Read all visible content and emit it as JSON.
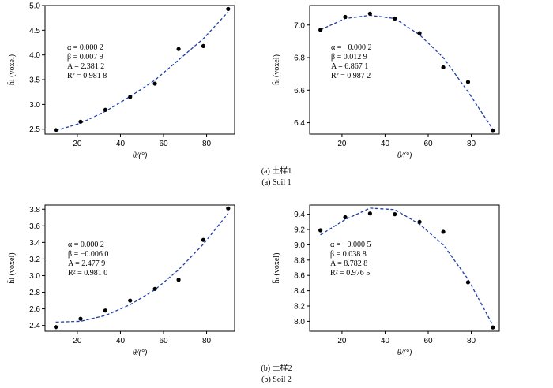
{
  "captions": {
    "a_cn": "(a) 土样1",
    "a_en": "(a) Soil 1",
    "b_cn": "(b) 土样2",
    "b_en": "(b) Soil 2"
  },
  "chart_data": [
    {
      "type": "scatter",
      "xlabel": "θ/(°)",
      "ylabel": "h̄l (voxel)",
      "xlim": [
        5,
        93
      ],
      "ylim": [
        2.4,
        5.0
      ],
      "xticks": [
        "20",
        "40",
        "60",
        "80"
      ],
      "xtick_values": [
        20,
        40,
        60,
        80
      ],
      "yticks": [
        "2.5",
        "3.0",
        "3.5",
        "4.0",
        "4.5",
        "5.0"
      ],
      "ytick_values": [
        2.5,
        3.0,
        3.5,
        4.0,
        4.5,
        5.0
      ],
      "points": {
        "x": [
          10,
          21.5,
          33,
          44.5,
          56,
          67,
          78.5,
          90
        ],
        "y": [
          2.48,
          2.65,
          2.89,
          3.15,
          3.42,
          4.12,
          4.18,
          4.93
        ]
      },
      "fit": {
        "x": [
          10,
          21.5,
          33,
          44.5,
          56,
          67,
          78.5,
          90
        ],
        "y": [
          2.47,
          2.62,
          2.86,
          3.16,
          3.49,
          3.9,
          4.33,
          4.87
        ]
      },
      "annotations": [
        "α = 0.000 2",
        "β = 0.007 9",
        "A = 2.381 2",
        "R² = 0.981 8"
      ]
    },
    {
      "type": "scatter",
      "xlabel": "θ/(°)",
      "ylabel": "h̄ₜ (voxel)",
      "xlim": [
        5,
        93
      ],
      "ylim": [
        6.33,
        7.12
      ],
      "xticks": [
        "20",
        "40",
        "60",
        "80"
      ],
      "xtick_values": [
        20,
        40,
        60,
        80
      ],
      "yticks": [
        "6.4",
        "6.6",
        "6.8",
        "7.0"
      ],
      "ytick_values": [
        6.4,
        6.6,
        6.8,
        7.0
      ],
      "points": {
        "x": [
          10,
          21.5,
          33,
          44.5,
          56,
          67,
          78.5,
          90
        ],
        "y": [
          6.97,
          7.05,
          7.07,
          7.04,
          6.95,
          6.74,
          6.65,
          6.35
        ]
      },
      "fit": {
        "x": [
          10,
          21.5,
          33,
          44.5,
          56,
          67,
          78.5,
          90
        ],
        "y": [
          6.97,
          7.04,
          7.06,
          7.04,
          6.94,
          6.8,
          6.59,
          6.36
        ]
      },
      "annotations": [
        "α = −0.000 2",
        "β = 0.012 9",
        "A = 6.867 1",
        "R² = 0.987 2"
      ]
    },
    {
      "type": "scatter",
      "xlabel": "θ/(°)",
      "ylabel": "h̄l (voxel)",
      "xlim": [
        5,
        93
      ],
      "ylim": [
        2.33,
        3.85
      ],
      "xticks": [
        "20",
        "40",
        "60",
        "80"
      ],
      "xtick_values": [
        20,
        40,
        60,
        80
      ],
      "yticks": [
        "2.4",
        "2.6",
        "2.8",
        "3.0",
        "3.2",
        "3.4",
        "3.6",
        "3.8"
      ],
      "ytick_values": [
        2.4,
        2.6,
        2.8,
        3.0,
        3.2,
        3.4,
        3.6,
        3.8
      ],
      "points": {
        "x": [
          10,
          21.5,
          33,
          44.5,
          56,
          67,
          78.5,
          90
        ],
        "y": [
          2.38,
          2.48,
          2.58,
          2.7,
          2.84,
          2.95,
          3.43,
          3.81
        ]
      },
      "fit": {
        "x": [
          10,
          21.5,
          33,
          44.5,
          56,
          67,
          78.5,
          90
        ],
        "y": [
          2.44,
          2.45,
          2.52,
          2.65,
          2.83,
          3.07,
          3.38,
          3.75
        ]
      },
      "annotations": [
        "α = 0.000 2",
        "β = −0.006 0",
        "A = 2.477 9",
        "R² = 0.981 0"
      ]
    },
    {
      "type": "scatter",
      "xlabel": "θ/(°)",
      "ylabel": "h̄ₜ (voxel)",
      "xlim": [
        5,
        93
      ],
      "ylim": [
        7.87,
        9.52
      ],
      "xticks": [
        "20",
        "40",
        "60",
        "80"
      ],
      "xtick_values": [
        20,
        40,
        60,
        80
      ],
      "yticks": [
        "8.0",
        "8.2",
        "8.4",
        "8.6",
        "8.8",
        "9.0",
        "9.2",
        "9.4"
      ],
      "ytick_values": [
        8.0,
        8.2,
        8.4,
        8.6,
        8.8,
        9.0,
        9.2,
        9.4
      ],
      "points": {
        "x": [
          10,
          21.5,
          33,
          44.5,
          56,
          67,
          78.5,
          90
        ],
        "y": [
          9.19,
          9.36,
          9.41,
          9.4,
          9.3,
          9.17,
          8.51,
          7.92
        ]
      },
      "fit": {
        "x": [
          10,
          21.5,
          33,
          44.5,
          56,
          67,
          78.5,
          90
        ],
        "y": [
          9.13,
          9.33,
          9.48,
          9.46,
          9.27,
          9.0,
          8.55,
          7.95
        ]
      },
      "annotations": [
        "α = −0.000 5",
        "β = 0.038 8",
        "A = 8.782 8",
        "R² = 0.976 5"
      ]
    }
  ]
}
